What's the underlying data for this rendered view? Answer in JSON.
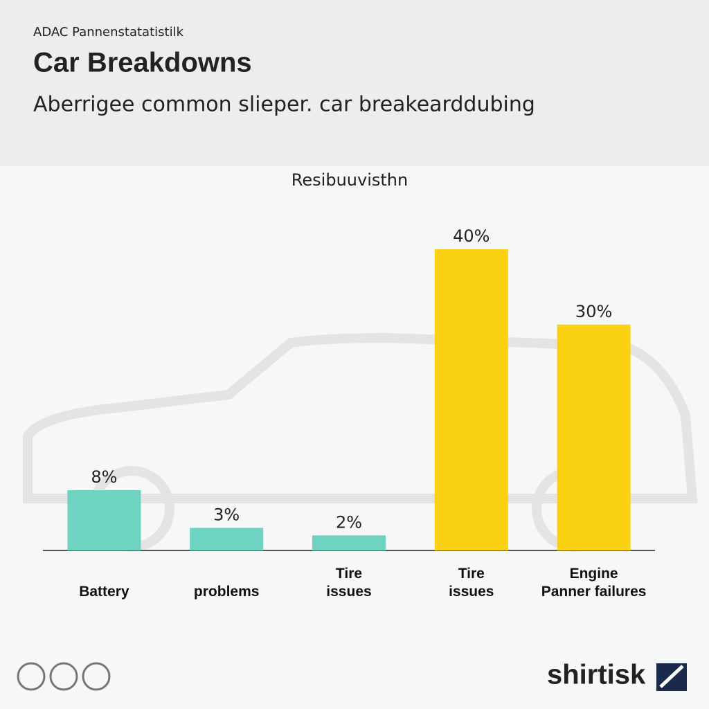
{
  "header": {
    "source": "ADAC Pannenstatatistilk",
    "logo": "shirtisk"
  },
  "chart_data": {
    "type": "bar",
    "title": "Car Breakdowns",
    "subtitle": "Aberrigee common slieper. car breakearddubing",
    "chart_label": "Resibuuvisthn",
    "categories": [
      "Battery",
      "problems",
      "Tire\nissues",
      "Tire\nissues",
      "Engine\nPanner failures"
    ],
    "values": [
      8,
      3,
      2,
      40,
      30
    ],
    "value_labels": [
      "8%",
      "3%",
      "2%",
      "40%",
      "30%"
    ],
    "colors": [
      "#6fd3c2",
      "#6fd3c2",
      "#6fd3c2",
      "#fbd114",
      "#fbd114"
    ]
  }
}
